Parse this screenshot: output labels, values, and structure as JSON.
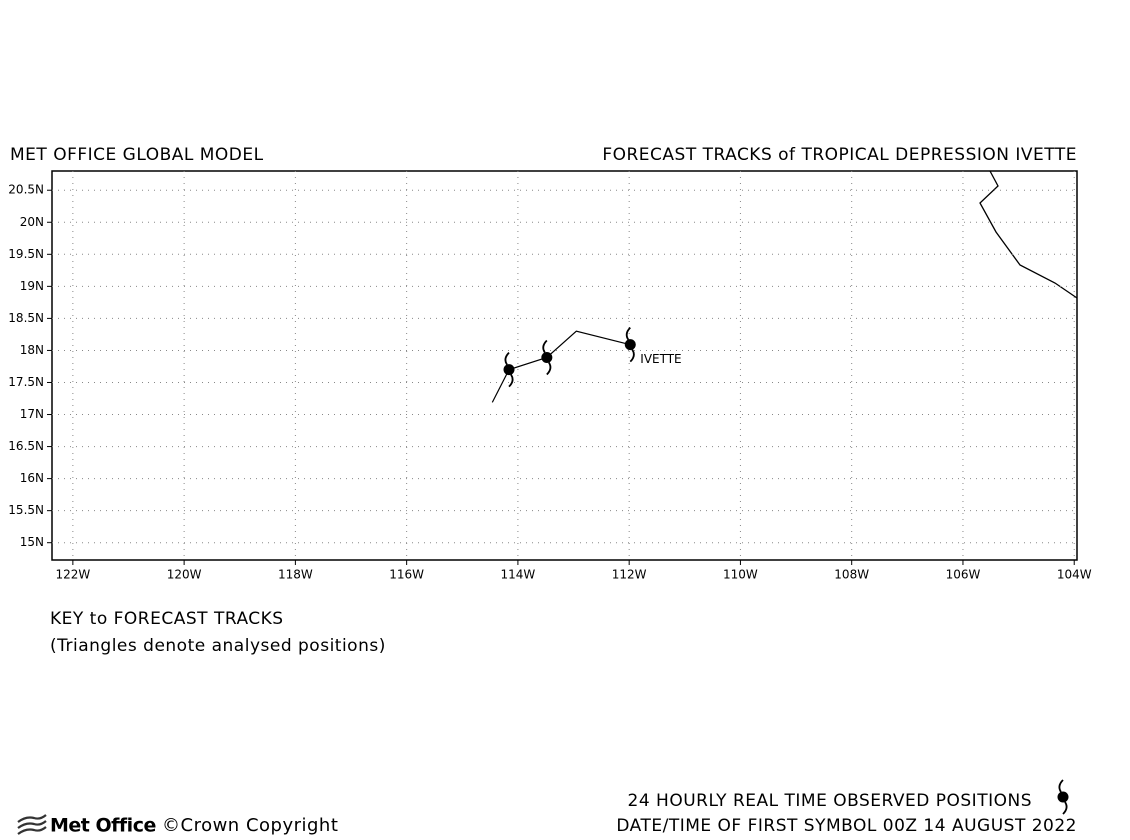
{
  "chart_data": {
    "type": "track",
    "title_left": "MET OFFICE GLOBAL MODEL",
    "title": "FORECAST TRACKS of TROPICAL DEPRESSION IVETTE",
    "xlim": [
      -122.375,
      -103.95
    ],
    "ylim": [
      14.73,
      20.8
    ],
    "xticks": [
      {
        "value": -122,
        "label": "122W"
      },
      {
        "value": -120,
        "label": "120W"
      },
      {
        "value": -118,
        "label": "118W"
      },
      {
        "value": -116,
        "label": "116W"
      },
      {
        "value": -114,
        "label": "114W"
      },
      {
        "value": -112,
        "label": "112W"
      },
      {
        "value": -110,
        "label": "110W"
      },
      {
        "value": -108,
        "label": "108W"
      },
      {
        "value": -106,
        "label": "106W"
      },
      {
        "value": -104,
        "label": "104W"
      }
    ],
    "yticks": [
      {
        "value": 15,
        "label": "15N"
      },
      {
        "value": 15.5,
        "label": "15.5N"
      },
      {
        "value": 16,
        "label": "16N"
      },
      {
        "value": 16.5,
        "label": "16.5N"
      },
      {
        "value": 17,
        "label": "17N"
      },
      {
        "value": 17.5,
        "label": "17.5N"
      },
      {
        "value": 18,
        "label": "18N"
      },
      {
        "value": 18.5,
        "label": "18.5N"
      },
      {
        "value": 19,
        "label": "19N"
      },
      {
        "value": 19.5,
        "label": "19.5N"
      },
      {
        "value": 20,
        "label": "20N"
      },
      {
        "value": 20.5,
        "label": "20.5N"
      }
    ],
    "grid": true,
    "series": [
      {
        "name": "IVETTE",
        "color": "#000000",
        "x": [
          -114.46,
          -114.16,
          -113.48,
          -112.95,
          -111.98
        ],
        "values": [
          17.19,
          17.7,
          17.89,
          18.3,
          18.09
        ]
      },
      {
        "name": "24 HOURLY REAL TIME OBSERVED POSITIONS",
        "color": "#000000",
        "x": [
          -114.16,
          -113.48,
          -111.98
        ],
        "values": [
          17.7,
          17.89,
          18.09
        ]
      }
    ],
    "key_title": "KEY to FORECAST TRACKS",
    "key_note": "(Triangles denote analysed positions)",
    "date_note": "DATE/TIME OF FIRST SYMBOL 00Z 14 AUGUST 2022",
    "brand": "Met Office",
    "copyright": "©Crown Copyright"
  }
}
